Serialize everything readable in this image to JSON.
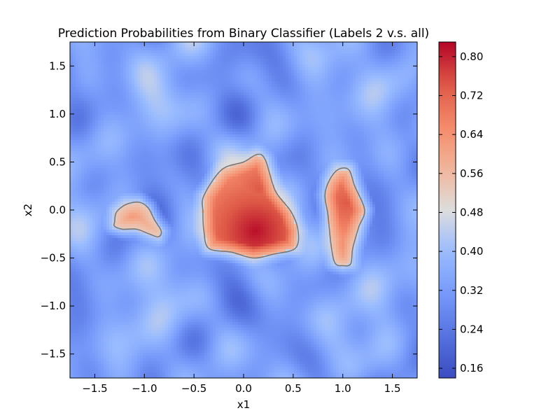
{
  "chart_data": {
    "type": "heatmap",
    "title": "Prediction Probabilities from Binary Classifier (Labels 2 v.s. all)",
    "xlabel": "x1",
    "ylabel": "x2",
    "xlim": [
      -1.75,
      1.75
    ],
    "ylim": [
      -1.75,
      1.75
    ],
    "x_ticks": [
      -1.5,
      -1.0,
      -0.5,
      0.0,
      0.5,
      1.0,
      1.5
    ],
    "x_tick_labels": [
      "−1.5",
      "−1.0",
      "−0.5",
      "0.0",
      "0.5",
      "1.0",
      "1.5"
    ],
    "y_ticks": [
      1.5,
      1.0,
      0.5,
      0.0,
      -0.5,
      -1.0,
      -1.5
    ],
    "y_tick_labels": [
      "1.5",
      "1.0",
      "0.5",
      "0.0",
      "−0.5",
      "−1.0",
      "−1.5"
    ],
    "colormap": "coolwarm",
    "colorbar": {
      "range": [
        0.14,
        0.83
      ],
      "ticks": [
        0.16,
        0.24,
        0.32,
        0.4,
        0.48,
        0.56,
        0.64,
        0.72,
        0.8
      ],
      "tick_labels": [
        "0.16",
        "0.24",
        "0.32",
        "0.40",
        "0.48",
        "0.56",
        "0.64",
        "0.72",
        "0.80"
      ]
    },
    "decision_contour_level": 0.5,
    "contour_color": "#777777",
    "regions": [
      {
        "id": "left",
        "outline": [
          [
            -1.3,
            -0.12
          ],
          [
            -1.28,
            -0.02
          ],
          [
            -1.18,
            0.06
          ],
          [
            -1.05,
            0.08
          ],
          [
            -0.96,
            0.02
          ],
          [
            -0.9,
            -0.1
          ],
          [
            -0.83,
            -0.22
          ],
          [
            -0.86,
            -0.28
          ],
          [
            -0.95,
            -0.25
          ],
          [
            -1.08,
            -0.2
          ],
          [
            -1.22,
            -0.2
          ],
          [
            -1.3,
            -0.17
          ]
        ],
        "peaks": [
          {
            "x": -1.12,
            "y": -0.08,
            "value": 0.62
          }
        ]
      },
      {
        "id": "center",
        "outline": [
          [
            -0.4,
            0.15
          ],
          [
            -0.22,
            0.42
          ],
          [
            0.0,
            0.5
          ],
          [
            0.14,
            0.58
          ],
          [
            0.22,
            0.52
          ],
          [
            0.32,
            0.2
          ],
          [
            0.48,
            -0.02
          ],
          [
            0.55,
            -0.22
          ],
          [
            0.52,
            -0.4
          ],
          [
            0.3,
            -0.46
          ],
          [
            0.1,
            -0.5
          ],
          [
            -0.12,
            -0.44
          ],
          [
            -0.35,
            -0.4
          ],
          [
            -0.4,
            -0.22
          ],
          [
            -0.41,
            -0.02
          ]
        ],
        "peaks": [
          {
            "x": 0.12,
            "y": -0.22,
            "value": 0.82
          },
          {
            "x": 0.15,
            "y": 0.22,
            "value": 0.74
          },
          {
            "x": -0.15,
            "y": 0.08,
            "value": 0.72
          }
        ]
      },
      {
        "id": "right",
        "outline": [
          [
            0.86,
            0.3
          ],
          [
            0.95,
            0.42
          ],
          [
            1.06,
            0.42
          ],
          [
            1.12,
            0.25
          ],
          [
            1.22,
            0.0
          ],
          [
            1.16,
            -0.18
          ],
          [
            1.1,
            -0.4
          ],
          [
            1.08,
            -0.56
          ],
          [
            1.0,
            -0.58
          ],
          [
            0.92,
            -0.55
          ],
          [
            0.88,
            -0.35
          ],
          [
            0.85,
            -0.05
          ],
          [
            0.82,
            0.15
          ]
        ],
        "peaks": [
          {
            "x": 1.04,
            "y": 0.08,
            "value": 0.74
          },
          {
            "x": 0.98,
            "y": 0.28,
            "value": 0.68
          },
          {
            "x": 1.0,
            "y": -0.38,
            "value": 0.66
          }
        ]
      }
    ]
  }
}
